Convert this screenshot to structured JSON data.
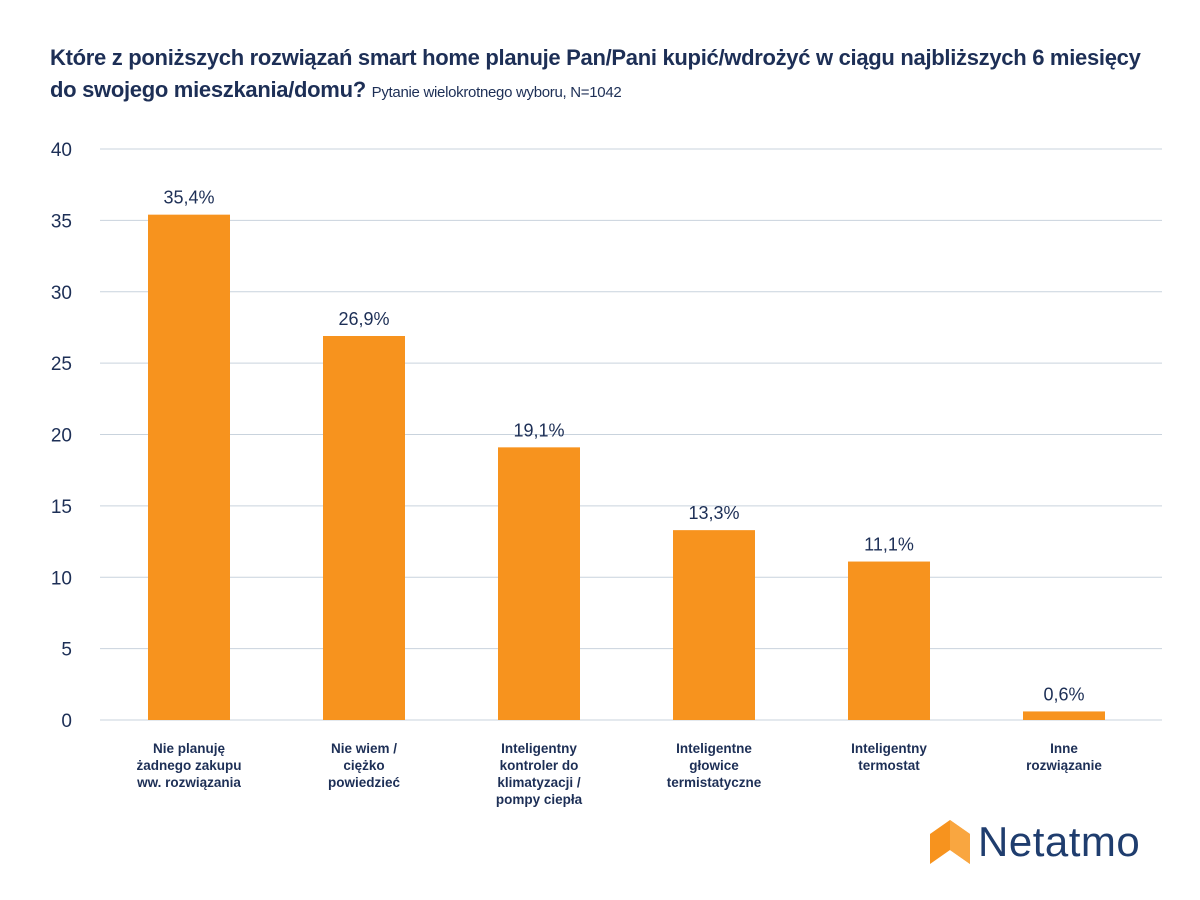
{
  "chart_data": {
    "type": "bar",
    "title": "Które z poniższych rozwiązań smart home planuje Pan/Pani kupić/wdrożyć w ciągu najbliższych 6 miesięcy do swojego mieszkania/domu?",
    "subtitle": "Pytanie wielokrotnego wyboru, N=1042",
    "categories": [
      "Nie planuję żadnego zakupu ww. rozwiązania",
      "Nie wiem / ciężko powiedzieć",
      "Inteligentny kontroler do klimatyzacji / pompy ciepła",
      "Inteligentne głowice termistatyczne",
      "Inteligentny termostat",
      "Inne rozwiązanie"
    ],
    "category_lines": [
      [
        "Nie planuję",
        "żadnego zakupu",
        "ww. rozwiązania"
      ],
      [
        "Nie wiem /",
        "ciężko",
        "powiedzieć"
      ],
      [
        "Inteligentny",
        "kontroler do",
        "klimatyzacji /",
        "pompy ciepła"
      ],
      [
        "Inteligentne",
        "głowice",
        "termistatyczne"
      ],
      [
        "Inteligentny",
        "termostat"
      ],
      [
        "Inne",
        "rozwiązanie"
      ]
    ],
    "values": [
      35.4,
      26.9,
      19.1,
      13.3,
      11.1,
      0.6
    ],
    "data_labels": [
      "35,4%",
      "26,9%",
      "19,1%",
      "13,3%",
      "11,1%",
      "0,6%"
    ],
    "yticks": [
      0,
      5,
      10,
      15,
      20,
      25,
      30,
      35,
      40
    ],
    "ylim": [
      0,
      40
    ],
    "grid": true,
    "xlabel": "",
    "ylabel": "",
    "colors": {
      "bar": "#F7931E",
      "text": "#1D2F56",
      "grid": "#C9D3DD"
    }
  },
  "logo": {
    "text": "Netatmo"
  }
}
